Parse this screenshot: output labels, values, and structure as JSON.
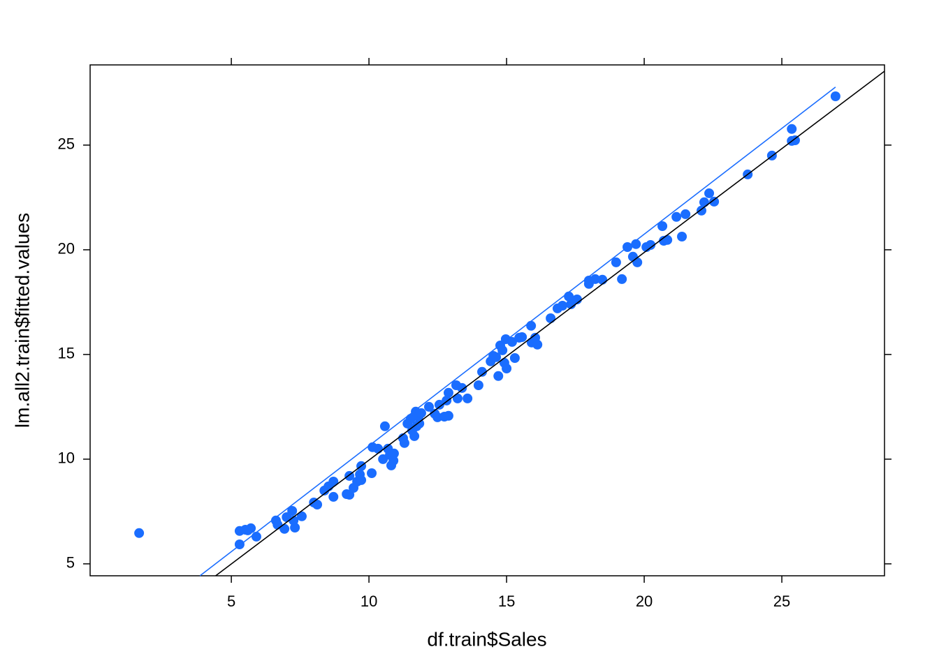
{
  "chart_data": {
    "type": "scatter",
    "xlabel": "df.train$Sales",
    "ylabel": "lm.all2.train$fitted.values",
    "color": "#1a6dff",
    "x": [
      1.65,
      5.3,
      5.3,
      5.51,
      5.71,
      5.6,
      5.91,
      6.62,
      6.68,
      6.93,
      7.01,
      7.21,
      7.26,
      7.31,
      7.56,
      8.0,
      8.12,
      8.38,
      8.53,
      8.71,
      8.71,
      9.19,
      9.29,
      9.29,
      9.44,
      9.57,
      9.67,
      9.72,
      9.72,
      10.1,
      10.13,
      10.33,
      10.51,
      10.58,
      10.69,
      10.76,
      10.81,
      10.89,
      10.91,
      11.24,
      11.29,
      11.4,
      11.52,
      11.57,
      11.65,
      11.7,
      11.73,
      11.8,
      11.83,
      11.9,
      12.18,
      12.39,
      12.49,
      12.56,
      12.74,
      12.82,
      12.89,
      12.89,
      13.17,
      13.22,
      13.38,
      13.58,
      13.98,
      14.11,
      14.42,
      14.52,
      14.62,
      14.7,
      14.77,
      14.85,
      14.92,
      14.97,
      15.0,
      15.2,
      15.3,
      15.46,
      15.56,
      15.89,
      15.91,
      16.04,
      16.12,
      16.6,
      16.85,
      17.03,
      17.26,
      17.34,
      17.56,
      17.99,
      17.99,
      18.22,
      18.48,
      18.98,
      19.19,
      19.39,
      19.59,
      19.7,
      19.75,
      20.08,
      20.23,
      20.66,
      20.71,
      20.84,
      21.17,
      21.37,
      21.5,
      22.08,
      22.18,
      22.36,
      22.54,
      23.76,
      24.64,
      25.36,
      25.36,
      25.48,
      26.95
    ],
    "values": [
      6.47,
      6.57,
      5.93,
      6.63,
      6.7,
      6.6,
      6.3,
      7.07,
      6.87,
      6.67,
      7.23,
      7.53,
      7.07,
      6.73,
      7.27,
      7.93,
      7.83,
      8.5,
      8.7,
      8.93,
      8.2,
      8.33,
      8.3,
      9.2,
      8.63,
      8.93,
      9.27,
      9.0,
      9.67,
      9.33,
      10.57,
      10.5,
      10.0,
      11.57,
      10.5,
      10.2,
      9.7,
      9.93,
      10.27,
      11.0,
      10.77,
      11.7,
      11.93,
      11.37,
      11.1,
      12.27,
      11.57,
      12.03,
      11.7,
      12.2,
      12.5,
      12.17,
      12.0,
      12.6,
      12.03,
      12.8,
      13.17,
      12.07,
      13.53,
      12.9,
      13.4,
      12.9,
      13.53,
      14.17,
      14.67,
      14.93,
      14.87,
      13.97,
      15.43,
      15.2,
      14.6,
      15.73,
      14.33,
      15.6,
      14.83,
      15.8,
      15.83,
      16.37,
      15.57,
      15.8,
      15.47,
      16.73,
      17.2,
      17.33,
      17.77,
      17.4,
      17.63,
      18.53,
      18.37,
      18.6,
      18.57,
      19.4,
      18.6,
      20.13,
      19.67,
      20.27,
      19.4,
      20.13,
      20.23,
      21.13,
      20.43,
      20.47,
      21.57,
      20.63,
      21.7,
      21.87,
      22.27,
      22.7,
      22.3,
      23.6,
      24.5,
      25.77,
      25.2,
      25.23,
      27.33
    ],
    "reference_lines": [
      {
        "color": "#000000",
        "x": [
          4.43,
          28.73
        ],
        "values": [
          4.43,
          28.53
        ]
      },
      {
        "color": "#1a6dff",
        "x": [
          3.86,
          26.95
        ],
        "values": [
          4.43,
          27.77
        ]
      }
    ],
    "xlim": [
      -0.13,
      28.73
    ],
    "ylim": [
      4.43,
      28.83
    ],
    "xticks": [
      5,
      10,
      15,
      20,
      25
    ],
    "yticks": [
      5,
      10,
      15,
      20,
      25
    ]
  }
}
